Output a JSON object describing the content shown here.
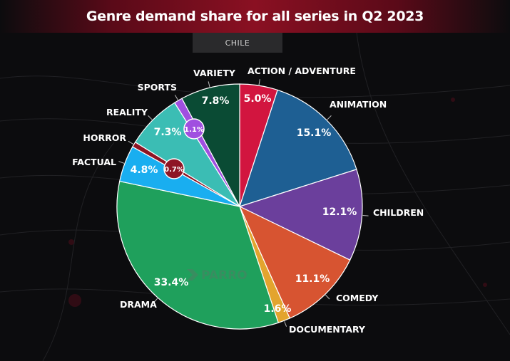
{
  "header": {
    "title": "Genre demand share for all series in Q2 2023"
  },
  "filter": {
    "country": "CHILE"
  },
  "colors": {
    "background": "#0c0c0e",
    "title_accent": "#8a1022"
  },
  "chart_data": {
    "type": "pie",
    "title": "Genre demand share for all series in Q2 2023",
    "slices": [
      {
        "label": "ACTION / ADVENTURE",
        "value": 5.0,
        "display": "5.0%",
        "color": "#d2153f"
      },
      {
        "label": "ANIMATION",
        "value": 15.1,
        "display": "15.1%",
        "color": "#1e5f93"
      },
      {
        "label": "CHILDREN",
        "value": 12.1,
        "display": "12.1%",
        "color": "#6b3f9c"
      },
      {
        "label": "COMEDY",
        "value": 11.1,
        "display": "11.1%",
        "color": "#d75431"
      },
      {
        "label": "DOCUMENTARY",
        "value": 1.6,
        "display": "1.6%",
        "color": "#e3a42e"
      },
      {
        "label": "DRAMA",
        "value": 33.4,
        "display": "33.4%",
        "color": "#1fa05c"
      },
      {
        "label": "FACTUAL",
        "value": 4.8,
        "display": "4.8%",
        "color": "#19aef0"
      },
      {
        "label": "HORROR",
        "value": 0.7,
        "display": "0.7%",
        "color": "#8e1524"
      },
      {
        "label": "REALITY",
        "value": 7.3,
        "display": "7.3%",
        "color": "#3bbdb4"
      },
      {
        "label": "SPORTS",
        "value": 1.1,
        "display": "1.1%",
        "color": "#a04fe0"
      },
      {
        "label": "VARIETY",
        "value": 7.8,
        "display": "7.8%",
        "color": "#0a4b34"
      }
    ]
  }
}
